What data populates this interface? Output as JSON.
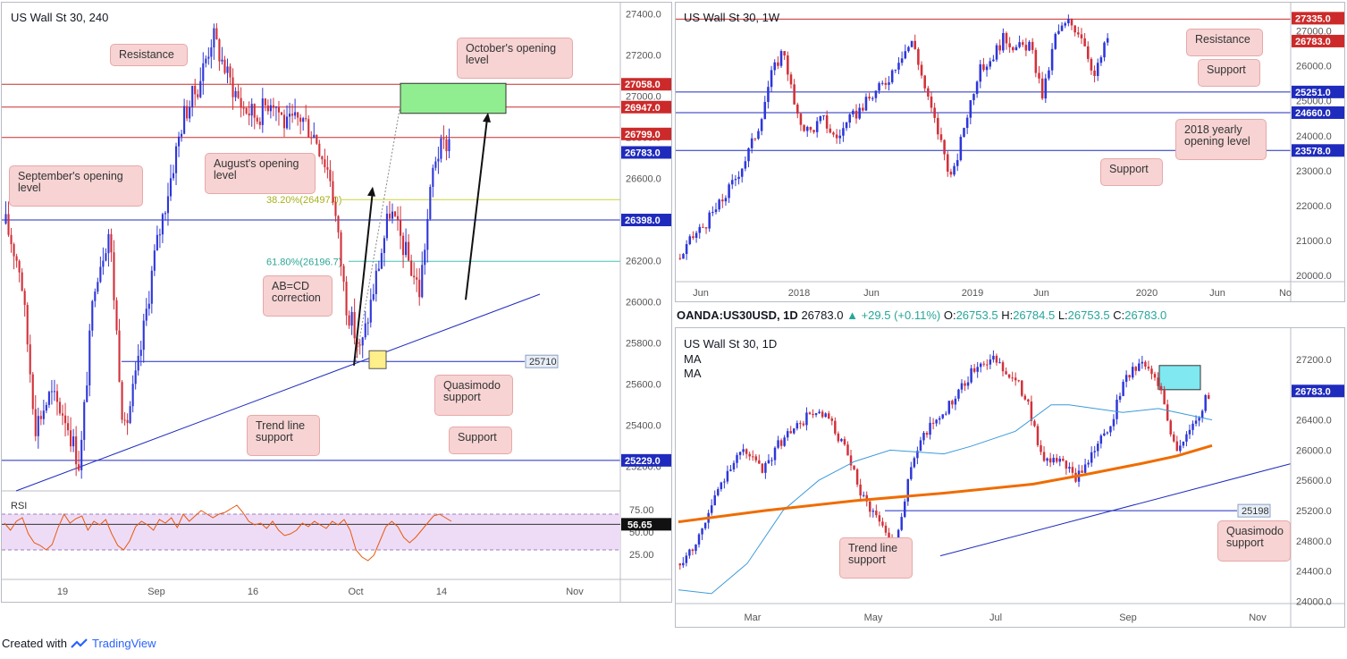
{
  "footer": {
    "created_with": "Created with",
    "brand": "TradingView"
  },
  "colors": {
    "up": "#2e37d8",
    "down": "#d2313a",
    "resistance": "#cc2a2a",
    "support": "#1f2bbd",
    "rsi": "#e8590c",
    "ma_blue": "#3b9ad9",
    "ma_orange": "#ef6c00",
    "zone_green": "#90ee90",
    "zone_cyan": "#7fe8f0"
  },
  "chart_data": [
    {
      "type": "candlestick",
      "title": "US Wall St 30, 240",
      "x_ticks": [
        "19",
        "Sep",
        "16",
        "Oct",
        "14",
        "Nov"
      ],
      "y_ticks": [
        "27400.0",
        "27200.0",
        "27000.0",
        "26800.0",
        "26600.0",
        "26400.0",
        "26200.0",
        "26000.0",
        "25800.0",
        "25600.0",
        "25400.0",
        "25200.0"
      ],
      "ylim": [
        25150,
        27420
      ],
      "levels": [
        {
          "label": "27058.0",
          "value": 27058,
          "kind": "resistance"
        },
        {
          "label": "26947.0",
          "value": 26947,
          "kind": "resistance"
        },
        {
          "label": "26799.0",
          "value": 26799,
          "kind": "resistance"
        },
        {
          "label": "26783.0",
          "value": 26783,
          "kind": "price"
        },
        {
          "label": "26398.0",
          "value": 26398,
          "kind": "support"
        },
        {
          "label": "25229.0",
          "value": 25229,
          "kind": "support"
        }
      ],
      "fib_levels": [
        {
          "label": "38.20%(26497.0)",
          "value": 26497
        },
        {
          "label": "61.80%(26196.7)",
          "value": 26196.7
        }
      ],
      "quasimodo": {
        "label": "25710",
        "value": 25710
      },
      "annotations": [
        "Resistance",
        "October's opening level",
        "August's opening level",
        "September's opening level",
        "AB=CD correction",
        "Quasimodo support",
        "Trend line support",
        "Support"
      ],
      "rsi": {
        "label": "RSI",
        "value_label": "56.65",
        "value": 56.65,
        "ticks": [
          "75.00",
          "50.00",
          "25.00"
        ],
        "series": [
          60,
          52,
          62,
          66,
          48,
          38,
          35,
          30,
          36,
          55,
          70,
          60,
          65,
          68,
          52,
          62,
          58,
          64,
          48,
          35,
          30,
          40,
          56,
          62,
          58,
          52,
          64,
          60,
          66,
          55,
          70,
          62,
          68,
          74,
          70,
          66,
          70,
          72,
          76,
          80,
          72,
          62,
          58,
          60,
          54,
          62,
          52,
          46,
          48,
          52,
          60,
          56,
          62,
          58,
          54,
          62,
          58,
          64,
          52,
          30,
          22,
          18,
          24,
          40,
          56,
          62,
          56,
          44,
          38,
          44,
          52,
          60,
          68,
          70,
          66,
          62
        ]
      }
    },
    {
      "type": "candlestick",
      "title": "US Wall St 30, 1W",
      "x_ticks": [
        "Jun",
        "2018",
        "Jun",
        "2019",
        "Jun",
        "2020",
        "Jun",
        "No"
      ],
      "y_ticks": [
        "27000.0",
        "26000.0",
        "25000.0",
        "24000.0",
        "23000.0",
        "22000.0",
        "21000.0",
        "20000.0"
      ],
      "ylim": [
        19800,
        27600
      ],
      "levels": [
        {
          "label": "27335.0",
          "value": 27335,
          "kind": "resistance"
        },
        {
          "label": "26783.0",
          "value": 26783,
          "kind": "price"
        },
        {
          "label": "25251.0",
          "value": 25251,
          "kind": "support"
        },
        {
          "label": "24660.0",
          "value": 24660,
          "kind": "support"
        },
        {
          "label": "23578.0",
          "value": 23578,
          "kind": "support"
        }
      ],
      "annotations": [
        "Resistance",
        "Support",
        "2018 yearly opening level",
        "Support"
      ]
    },
    {
      "type": "candlestick",
      "title": "US Wall St 30, 1D",
      "header": {
        "symbol": "OANDA:US30USD, 1D",
        "last": "26783.0",
        "arrow": "▲",
        "change": "+29.5 (+0.11%)",
        "o_label": "O:",
        "o": "26753.5",
        "h_label": "H:",
        "h": "26784.5",
        "l_label": "L:",
        "l": "26753.5",
        "c_label": "C:",
        "c": "26783.0"
      },
      "legend": [
        "MA",
        "MA"
      ],
      "x_ticks": [
        "Mar",
        "May",
        "Jul",
        "Sep",
        "Nov"
      ],
      "y_ticks": [
        "27200.0",
        "26800.0",
        "26400.0",
        "26000.0",
        "25600.0",
        "25200.0",
        "24800.0",
        "24400.0",
        "24000.0"
      ],
      "ylim": [
        23850,
        27520
      ],
      "levels": [
        {
          "label": "26783.0",
          "value": 26783,
          "kind": "price"
        }
      ],
      "quasimodo": {
        "label": "25198",
        "value": 25198
      },
      "annotations": [
        "Trend line support",
        "Quasimodo support"
      ]
    }
  ]
}
